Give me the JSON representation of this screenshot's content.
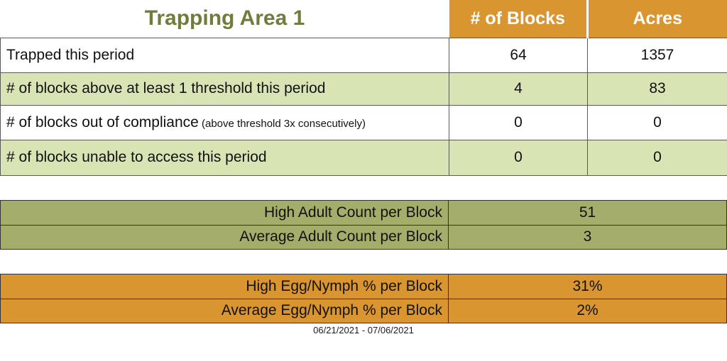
{
  "header": {
    "title": "Trapping Area 1",
    "col_blocks": "# of Blocks",
    "col_acres": "Acres"
  },
  "main_rows": [
    {
      "label": "Trapped this period",
      "note": "",
      "blocks": "64",
      "acres": "1357"
    },
    {
      "label": "# of blocks above at least 1 threshold this period",
      "note": "",
      "blocks": "4",
      "acres": "83"
    },
    {
      "label": "# of blocks out of compliance",
      "note": " (above threshold 3x consecutively)",
      "blocks": "0",
      "acres": "0"
    },
    {
      "label": "# of blocks unable to access this period",
      "note": "",
      "blocks": "0",
      "acres": "0"
    }
  ],
  "adult_counts": {
    "rows": [
      {
        "label": "High Adult Count per Block",
        "value": "51"
      },
      {
        "label": "Average Adult Count per Block",
        "value": "3"
      }
    ]
  },
  "egg_nymph": {
    "rows": [
      {
        "label": "High Egg/Nymph % per Block",
        "value": "31%"
      },
      {
        "label": "Average Egg/Nymph % per Block",
        "value": "2%"
      }
    ]
  },
  "footer": {
    "date_range": "06/21/2021 - 07/06/2021"
  },
  "colors": {
    "orange": "#D9952F",
    "light_green": "#D8E4B4",
    "olive": "#A4AE6A",
    "title_green": "#6F7D3C"
  }
}
